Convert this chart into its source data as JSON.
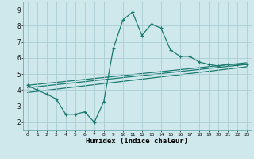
{
  "bg_color": "#cfe8ec",
  "grid_color": "#aacdd4",
  "line_color": "#1a7a6e",
  "xlabel": "Humidex (Indice chaleur)",
  "xlim": [
    -0.5,
    23.5
  ],
  "ylim": [
    1.5,
    9.5
  ],
  "yticks": [
    2,
    3,
    4,
    5,
    6,
    7,
    8,
    9
  ],
  "xticks": [
    0,
    1,
    2,
    3,
    4,
    5,
    6,
    7,
    8,
    9,
    10,
    11,
    12,
    13,
    14,
    15,
    16,
    17,
    18,
    19,
    20,
    21,
    22,
    23
  ],
  "series1_x": [
    0,
    1,
    2,
    3,
    4,
    5,
    6,
    7,
    8,
    9,
    10,
    11,
    12,
    13,
    14,
    15,
    16,
    17,
    18,
    19,
    20,
    21,
    22,
    23
  ],
  "series1_y": [
    4.3,
    4.0,
    3.75,
    3.45,
    2.5,
    2.5,
    2.65,
    2.0,
    3.3,
    6.6,
    8.35,
    8.85,
    7.4,
    8.1,
    7.85,
    6.5,
    6.1,
    6.1,
    5.75,
    5.6,
    5.5,
    5.6,
    5.6,
    5.6
  ],
  "series2_x": [
    0,
    23
  ],
  "series2_y": [
    4.15,
    5.6
  ],
  "series3_x": [
    0,
    23
  ],
  "series3_y": [
    3.85,
    5.45
  ],
  "series4_x": [
    0,
    23
  ],
  "series4_y": [
    4.3,
    5.7
  ]
}
